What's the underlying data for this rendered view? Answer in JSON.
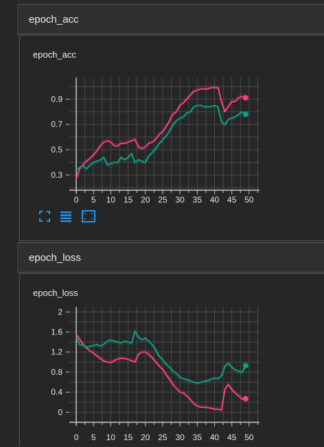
{
  "sections": [
    {
      "header": "epoch_acc",
      "card_title": "epoch_acc"
    },
    {
      "header": "epoch_loss",
      "card_title": "epoch_loss"
    }
  ],
  "toolbar": {
    "icons": [
      "fullscreen-icon",
      "data-table-icon",
      "fit-domain-icon"
    ],
    "color": "#2196f3"
  },
  "colors": {
    "train": "#ff4081",
    "validation": "#0fa088",
    "grid": "#4a4a4a",
    "axis": "#c8c8c8",
    "text": "#e6e6e6"
  },
  "chart_data": [
    {
      "type": "line",
      "xlim": [
        -2,
        53
      ],
      "ylim": [
        0.18,
        1.07
      ],
      "xticks": [
        0,
        5,
        10,
        15,
        20,
        25,
        30,
        35,
        40,
        45,
        50
      ],
      "yticks": [
        0.3,
        0.5,
        0.7,
        0.9
      ],
      "ytick_labels": [
        "0.3",
        "0.5",
        "0.7",
        "0.9"
      ],
      "grid": true,
      "series": [
        {
          "color": "#ff4081",
          "x": [
            0,
            1,
            2,
            3,
            4,
            5,
            6,
            7,
            8,
            9,
            10,
            11,
            12,
            13,
            14,
            15,
            16,
            17,
            18,
            19,
            20,
            21,
            22,
            23,
            24,
            25,
            26,
            27,
            28,
            29,
            30,
            31,
            32,
            33,
            34,
            35,
            36,
            37,
            38,
            39,
            40,
            41,
            42,
            43,
            44,
            45,
            46,
            47,
            48,
            49
          ],
          "values": [
            0.27,
            0.35,
            0.38,
            0.41,
            0.43,
            0.46,
            0.49,
            0.53,
            0.56,
            0.57,
            0.56,
            0.53,
            0.53,
            0.55,
            0.55,
            0.56,
            0.57,
            0.58,
            0.52,
            0.51,
            0.52,
            0.55,
            0.56,
            0.58,
            0.62,
            0.64,
            0.68,
            0.73,
            0.78,
            0.8,
            0.85,
            0.87,
            0.9,
            0.93,
            0.96,
            0.97,
            0.98,
            0.98,
            0.98,
            0.99,
            0.99,
            0.99,
            0.88,
            0.8,
            0.84,
            0.88,
            0.88,
            0.91,
            0.92,
            0.91
          ]
        },
        {
          "color": "#0fa088",
          "x": [
            0,
            1,
            2,
            3,
            4,
            5,
            6,
            7,
            8,
            9,
            10,
            11,
            12,
            13,
            14,
            15,
            16,
            17,
            18,
            19,
            20,
            21,
            22,
            23,
            24,
            25,
            26,
            27,
            28,
            29,
            30,
            31,
            32,
            33,
            34,
            35,
            36,
            37,
            38,
            39,
            40,
            41,
            42,
            43,
            44,
            45,
            46,
            47,
            48,
            49
          ],
          "values": [
            0.34,
            0.36,
            0.37,
            0.35,
            0.38,
            0.4,
            0.41,
            0.42,
            0.44,
            0.38,
            0.39,
            0.4,
            0.4,
            0.44,
            0.42,
            0.44,
            0.47,
            0.4,
            0.42,
            0.41,
            0.4,
            0.45,
            0.48,
            0.51,
            0.55,
            0.58,
            0.61,
            0.65,
            0.7,
            0.73,
            0.75,
            0.76,
            0.79,
            0.8,
            0.84,
            0.85,
            0.85,
            0.84,
            0.84,
            0.84,
            0.85,
            0.84,
            0.72,
            0.7,
            0.74,
            0.75,
            0.76,
            0.78,
            0.8,
            0.78
          ]
        }
      ]
    },
    {
      "type": "line",
      "xlim": [
        -2,
        53
      ],
      "ylim": [
        -0.2,
        2.1
      ],
      "xticks": [
        0,
        5,
        10,
        15,
        20,
        25,
        30,
        35,
        40,
        45,
        50
      ],
      "yticks": [
        0,
        0.4,
        0.8,
        1.2,
        1.6,
        2
      ],
      "ytick_labels": [
        "0",
        "0.4",
        "0.8",
        "1.2",
        "1.6",
        "2"
      ],
      "grid": true,
      "series": [
        {
          "color": "#ff4081",
          "x": [
            0,
            1,
            2,
            3,
            4,
            5,
            6,
            7,
            8,
            9,
            10,
            11,
            12,
            13,
            14,
            15,
            16,
            17,
            18,
            19,
            20,
            21,
            22,
            23,
            24,
            25,
            26,
            27,
            28,
            29,
            30,
            31,
            32,
            33,
            34,
            35,
            36,
            37,
            38,
            39,
            40,
            41,
            42,
            43,
            44,
            45,
            46,
            47,
            48,
            49
          ],
          "values": [
            1.55,
            1.45,
            1.35,
            1.28,
            1.22,
            1.18,
            1.12,
            1.07,
            1.02,
            1.0,
            0.99,
            1.03,
            1.06,
            1.08,
            1.07,
            1.05,
            1.03,
            1.0,
            1.15,
            1.2,
            1.2,
            1.15,
            1.08,
            1.0,
            0.92,
            0.85,
            0.75,
            0.65,
            0.55,
            0.47,
            0.4,
            0.38,
            0.32,
            0.25,
            0.17,
            0.12,
            0.1,
            0.1,
            0.09,
            0.08,
            0.06,
            0.06,
            0.04,
            0.45,
            0.55,
            0.45,
            0.38,
            0.32,
            0.26,
            0.27
          ]
        },
        {
          "color": "#0fa088",
          "x": [
            0,
            1,
            2,
            3,
            4,
            5,
            6,
            7,
            8,
            9,
            10,
            11,
            12,
            13,
            14,
            15,
            16,
            17,
            18,
            19,
            20,
            21,
            22,
            23,
            24,
            25,
            26,
            27,
            28,
            29,
            30,
            31,
            32,
            33,
            34,
            35,
            36,
            37,
            38,
            39,
            40,
            41,
            42,
            43,
            44,
            45,
            46,
            47,
            48,
            49
          ],
          "values": [
            1.5,
            1.35,
            1.33,
            1.3,
            1.32,
            1.33,
            1.35,
            1.32,
            1.36,
            1.42,
            1.44,
            1.42,
            1.4,
            1.38,
            1.42,
            1.4,
            1.38,
            1.62,
            1.5,
            1.45,
            1.48,
            1.42,
            1.35,
            1.25,
            1.12,
            1.05,
            0.96,
            0.9,
            0.82,
            0.77,
            0.7,
            0.67,
            0.65,
            0.63,
            0.6,
            0.58,
            0.6,
            0.62,
            0.63,
            0.66,
            0.68,
            0.67,
            0.73,
            0.92,
            0.98,
            0.9,
            0.85,
            0.82,
            0.8,
            0.93
          ]
        }
      ]
    }
  ]
}
